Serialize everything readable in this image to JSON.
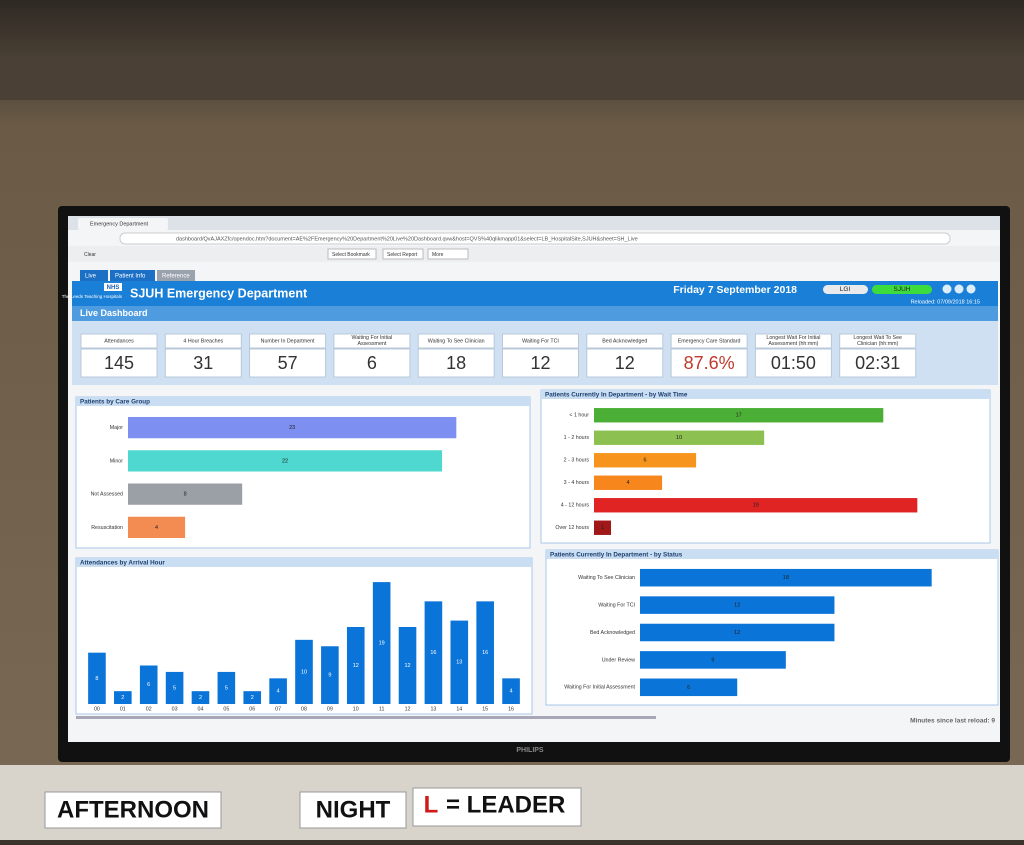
{
  "browser": {
    "tab": "Emergency Department",
    "url": "dashboard/QvAJAXZfc/opendoc.htm?document=AE%2FEmergency%20Department%20Live%20Dashboard.qvw&host=QVS%40qlikmapp01&select=LB_HospitalSite,SJUH&sheet=SH_Live",
    "toolbar": [
      "Clear",
      "Select Bookmark",
      "Select Report",
      "More"
    ]
  },
  "header": {
    "tabs": [
      "Live",
      "Patient Info",
      "Reference"
    ],
    "nhs": "NHS",
    "trust": "The Leeds Teaching Hospitals",
    "title": "SJUH Emergency Department",
    "date": "Friday 7 September 2018",
    "sites": [
      "LGI",
      "SJUH"
    ],
    "reloaded": "Reloaded: 07/09/2018 16:15",
    "section": "Live Dashboard"
  },
  "kpis": [
    {
      "label": "Attendances",
      "value": "145"
    },
    {
      "label": "4 Hour Breaches",
      "value": "31"
    },
    {
      "label": "Number In Department",
      "value": "57"
    },
    {
      "label": "Waiting For Initial Assessment",
      "value": "6"
    },
    {
      "label": "Waiting To See Clinician",
      "value": "18"
    },
    {
      "label": "Waiting For TCI",
      "value": "12"
    },
    {
      "label": "Bed Acknowledged",
      "value": "12"
    },
    {
      "label": "Emergency Care Standard",
      "value": "87.6%"
    },
    {
      "label": "Longest Wait For Initial Assessment (hh:mm)",
      "value": "01:50"
    },
    {
      "label": "Longest Wait To See Clinician (hh:mm)",
      "value": "02:31"
    }
  ],
  "chart_data": [
    {
      "type": "bar",
      "orientation": "horizontal",
      "title": "Patients by Care Group",
      "categories": [
        "Major",
        "Minor",
        "Not Assessed",
        "Resuscitation"
      ],
      "values": [
        23,
        22,
        8,
        4
      ],
      "colors": [
        "#7d8ff0",
        "#4fd8cf",
        "#9aa0a6",
        "#f28c52"
      ]
    },
    {
      "type": "bar",
      "orientation": "horizontal",
      "title": "Patients Currently In Department - by Wait Time",
      "categories": [
        "< 1 hour",
        "1 - 2 hours",
        "2 - 3 hours",
        "3 - 4 hours",
        "4 - 12 hours",
        "Over 12 hours"
      ],
      "values": [
        17,
        10,
        6,
        4,
        19,
        1
      ],
      "colors": [
        "#4caf35",
        "#8cc152",
        "#f7941d",
        "#f7861d",
        "#e02424",
        "#a01818"
      ]
    },
    {
      "type": "bar",
      "orientation": "vertical",
      "title": "Attendances by Arrival Hour",
      "categories": [
        "00",
        "01",
        "02",
        "03",
        "04",
        "05",
        "06",
        "07",
        "08",
        "09",
        "10",
        "11",
        "12",
        "13",
        "14",
        "15",
        "16"
      ],
      "values": [
        8,
        2,
        6,
        5,
        2,
        5,
        2,
        4,
        10,
        9,
        12,
        19,
        12,
        16,
        13,
        16,
        4
      ],
      "color": "#0b74d8"
    },
    {
      "type": "bar",
      "orientation": "horizontal",
      "title": "Patients Currently In Department - by Status",
      "categories": [
        "Waiting To See Clinician",
        "Waiting For TCI",
        "Bed Acknowledged",
        "Under Review",
        "Waiting For Initial Assessment"
      ],
      "values": [
        18,
        12,
        12,
        9,
        6
      ],
      "color": "#0b74d8"
    }
  ],
  "footer": "Minutes since last reload: 9",
  "brand": "PHILIPS",
  "signs": [
    "AFTERNOON",
    "NIGHT",
    "L",
    "= LEADER"
  ]
}
